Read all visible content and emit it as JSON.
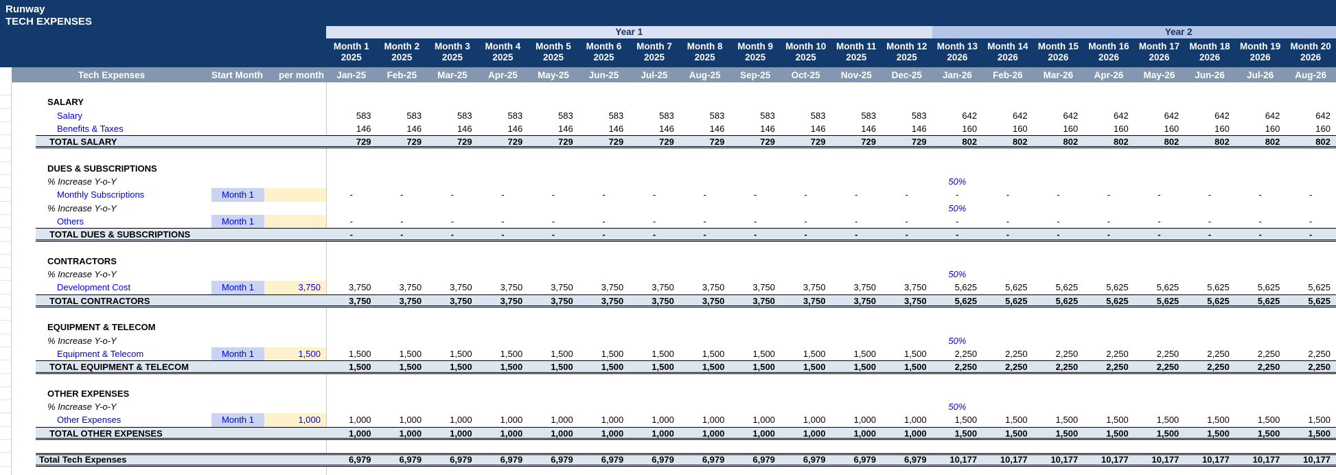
{
  "title": {
    "company": "Runway",
    "sheet": "TECH EXPENSES"
  },
  "colors": {
    "header_navy": "#123a6d",
    "column_header_gray": "#8497b0",
    "total_row_bg": "#dce6f1",
    "year1_band_bg": "#d9e1f2",
    "year2_band_bg": "#b4c6e7",
    "start_month_cell_bg": "#c9d4f0",
    "per_month_cell_bg": "#fdf2cc",
    "input_text_blue": "#0000ee"
  },
  "year_bands": [
    {
      "label": "Year 1",
      "months": 12
    },
    {
      "label": "Year 2",
      "months": 8
    }
  ],
  "column_headers": {
    "label": "Tech Expenses",
    "start": "Start Month",
    "per": "per month"
  },
  "months": [
    {
      "name": "Month 1",
      "year": "2025",
      "date": "Jan-25"
    },
    {
      "name": "Month 2",
      "year": "2025",
      "date": "Feb-25"
    },
    {
      "name": "Month 3",
      "year": "2025",
      "date": "Mar-25"
    },
    {
      "name": "Month 4",
      "year": "2025",
      "date": "Apr-25"
    },
    {
      "name": "Month 5",
      "year": "2025",
      "date": "May-25"
    },
    {
      "name": "Month 6",
      "year": "2025",
      "date": "Jun-25"
    },
    {
      "name": "Month 7",
      "year": "2025",
      "date": "Jul-25"
    },
    {
      "name": "Month 8",
      "year": "2025",
      "date": "Aug-25"
    },
    {
      "name": "Month 9",
      "year": "2025",
      "date": "Sep-25"
    },
    {
      "name": "Month 10",
      "year": "2025",
      "date": "Oct-25"
    },
    {
      "name": "Month 11",
      "year": "2025",
      "date": "Nov-25"
    },
    {
      "name": "Month 12",
      "year": "2025",
      "date": "Dec-25"
    },
    {
      "name": "Month 13",
      "year": "2026",
      "date": "Jan-26"
    },
    {
      "name": "Month 14",
      "year": "2026",
      "date": "Feb-26"
    },
    {
      "name": "Month 15",
      "year": "2026",
      "date": "Mar-26"
    },
    {
      "name": "Month 16",
      "year": "2026",
      "date": "Apr-26"
    },
    {
      "name": "Month 17",
      "year": "2026",
      "date": "May-26"
    },
    {
      "name": "Month 18",
      "year": "2026",
      "date": "Jun-26"
    },
    {
      "name": "Month 19",
      "year": "2026",
      "date": "Jul-26"
    },
    {
      "name": "Month 20",
      "year": "2026",
      "date": "Aug-26"
    }
  ],
  "rows": [
    {
      "t": "blank"
    },
    {
      "t": "section",
      "label": "SALARY"
    },
    {
      "t": "item",
      "label": "Salary",
      "vals": [
        "583",
        "583",
        "583",
        "583",
        "583",
        "583",
        "583",
        "583",
        "583",
        "583",
        "583",
        "583",
        "642",
        "642",
        "642",
        "642",
        "642",
        "642",
        "642",
        "642"
      ]
    },
    {
      "t": "item",
      "label": "Benefits & Taxes",
      "vals": [
        "146",
        "146",
        "146",
        "146",
        "146",
        "146",
        "146",
        "146",
        "146",
        "146",
        "146",
        "146",
        "160",
        "160",
        "160",
        "160",
        "160",
        "160",
        "160",
        "160"
      ]
    },
    {
      "t": "total",
      "label": "TOTAL SALARY",
      "vals": [
        "729",
        "729",
        "729",
        "729",
        "729",
        "729",
        "729",
        "729",
        "729",
        "729",
        "729",
        "729",
        "802",
        "802",
        "802",
        "802",
        "802",
        "802",
        "802",
        "802"
      ]
    },
    {
      "t": "blank"
    },
    {
      "t": "section",
      "label": "DUES & SUBSCRIPTIONS"
    },
    {
      "t": "pct",
      "label": "% Increase Y-o-Y",
      "pct_col": 13,
      "pct": "50%"
    },
    {
      "t": "item",
      "label": "Monthly Subscriptions",
      "start": "Month 1",
      "per": "",
      "vals": [
        "-",
        "-",
        "-",
        "-",
        "-",
        "-",
        "-",
        "-",
        "-",
        "-",
        "-",
        "-",
        "-",
        "-",
        "-",
        "-",
        "-",
        "-",
        "-",
        "-"
      ]
    },
    {
      "t": "pct",
      "label": "% Increase Y-o-Y",
      "pct_col": 13,
      "pct": "50%"
    },
    {
      "t": "item",
      "label": "Others",
      "start": "Month 1",
      "per": "",
      "vals": [
        "-",
        "-",
        "-",
        "-",
        "-",
        "-",
        "-",
        "-",
        "-",
        "-",
        "-",
        "-",
        "-",
        "-",
        "-",
        "-",
        "-",
        "-",
        "-",
        "-"
      ]
    },
    {
      "t": "total",
      "label": "TOTAL DUES & SUBSCRIPTIONS",
      "vals": [
        "-",
        "-",
        "-",
        "-",
        "-",
        "-",
        "-",
        "-",
        "-",
        "-",
        "-",
        "-",
        "-",
        "-",
        "-",
        "-",
        "-",
        "-",
        "-",
        "-"
      ]
    },
    {
      "t": "blank"
    },
    {
      "t": "section",
      "label": "CONTRACTORS"
    },
    {
      "t": "pct",
      "label": "% Increase Y-o-Y",
      "pct_col": 13,
      "pct": "50%"
    },
    {
      "t": "item",
      "label": "Development Cost",
      "start": "Month 1",
      "per": "3,750",
      "vals": [
        "3,750",
        "3,750",
        "3,750",
        "3,750",
        "3,750",
        "3,750",
        "3,750",
        "3,750",
        "3,750",
        "3,750",
        "3,750",
        "3,750",
        "5,625",
        "5,625",
        "5,625",
        "5,625",
        "5,625",
        "5,625",
        "5,625",
        "5,625"
      ]
    },
    {
      "t": "total",
      "label": "TOTAL CONTRACTORS",
      "vals": [
        "3,750",
        "3,750",
        "3,750",
        "3,750",
        "3,750",
        "3,750",
        "3,750",
        "3,750",
        "3,750",
        "3,750",
        "3,750",
        "3,750",
        "5,625",
        "5,625",
        "5,625",
        "5,625",
        "5,625",
        "5,625",
        "5,625",
        "5,625"
      ]
    },
    {
      "t": "blank"
    },
    {
      "t": "section",
      "label": "EQUIPMENT & TELECOM"
    },
    {
      "t": "pct",
      "label": "% Increase Y-o-Y",
      "pct_col": 13,
      "pct": "50%"
    },
    {
      "t": "item",
      "label": "Equipment & Telecom",
      "start": "Month 1",
      "per": "1,500",
      "vals": [
        "1,500",
        "1,500",
        "1,500",
        "1,500",
        "1,500",
        "1,500",
        "1,500",
        "1,500",
        "1,500",
        "1,500",
        "1,500",
        "1,500",
        "2,250",
        "2,250",
        "2,250",
        "2,250",
        "2,250",
        "2,250",
        "2,250",
        "2,250"
      ]
    },
    {
      "t": "total",
      "label": "TOTAL EQUIPMENT & TELECOM",
      "vals": [
        "1,500",
        "1,500",
        "1,500",
        "1,500",
        "1,500",
        "1,500",
        "1,500",
        "1,500",
        "1,500",
        "1,500",
        "1,500",
        "1,500",
        "2,250",
        "2,250",
        "2,250",
        "2,250",
        "2,250",
        "2,250",
        "2,250",
        "2,250"
      ]
    },
    {
      "t": "blank"
    },
    {
      "t": "section",
      "label": "OTHER EXPENSES"
    },
    {
      "t": "pct",
      "label": "% Increase Y-o-Y",
      "pct_col": 13,
      "pct": "50%"
    },
    {
      "t": "item",
      "label": "Other Expenses",
      "start": "Month 1",
      "per": "1,000",
      "vals": [
        "1,000",
        "1,000",
        "1,000",
        "1,000",
        "1,000",
        "1,000",
        "1,000",
        "1,000",
        "1,000",
        "1,000",
        "1,000",
        "1,000",
        "1,500",
        "1,500",
        "1,500",
        "1,500",
        "1,500",
        "1,500",
        "1,500",
        "1,500"
      ]
    },
    {
      "t": "total",
      "label": "TOTAL OTHER EXPENSES",
      "vals": [
        "1,000",
        "1,000",
        "1,000",
        "1,000",
        "1,000",
        "1,000",
        "1,000",
        "1,000",
        "1,000",
        "1,000",
        "1,000",
        "1,000",
        "1,500",
        "1,500",
        "1,500",
        "1,500",
        "1,500",
        "1,500",
        "1,500",
        "1,500"
      ]
    },
    {
      "t": "blank"
    },
    {
      "t": "grand",
      "label": "Total Tech Expenses",
      "vals": [
        "6,979",
        "6,979",
        "6,979",
        "6,979",
        "6,979",
        "6,979",
        "6,979",
        "6,979",
        "6,979",
        "6,979",
        "6,979",
        "6,979",
        "10,177",
        "10,177",
        "10,177",
        "10,177",
        "10,177",
        "10,177",
        "10,177",
        "10,177"
      ]
    },
    {
      "t": "blank"
    }
  ]
}
